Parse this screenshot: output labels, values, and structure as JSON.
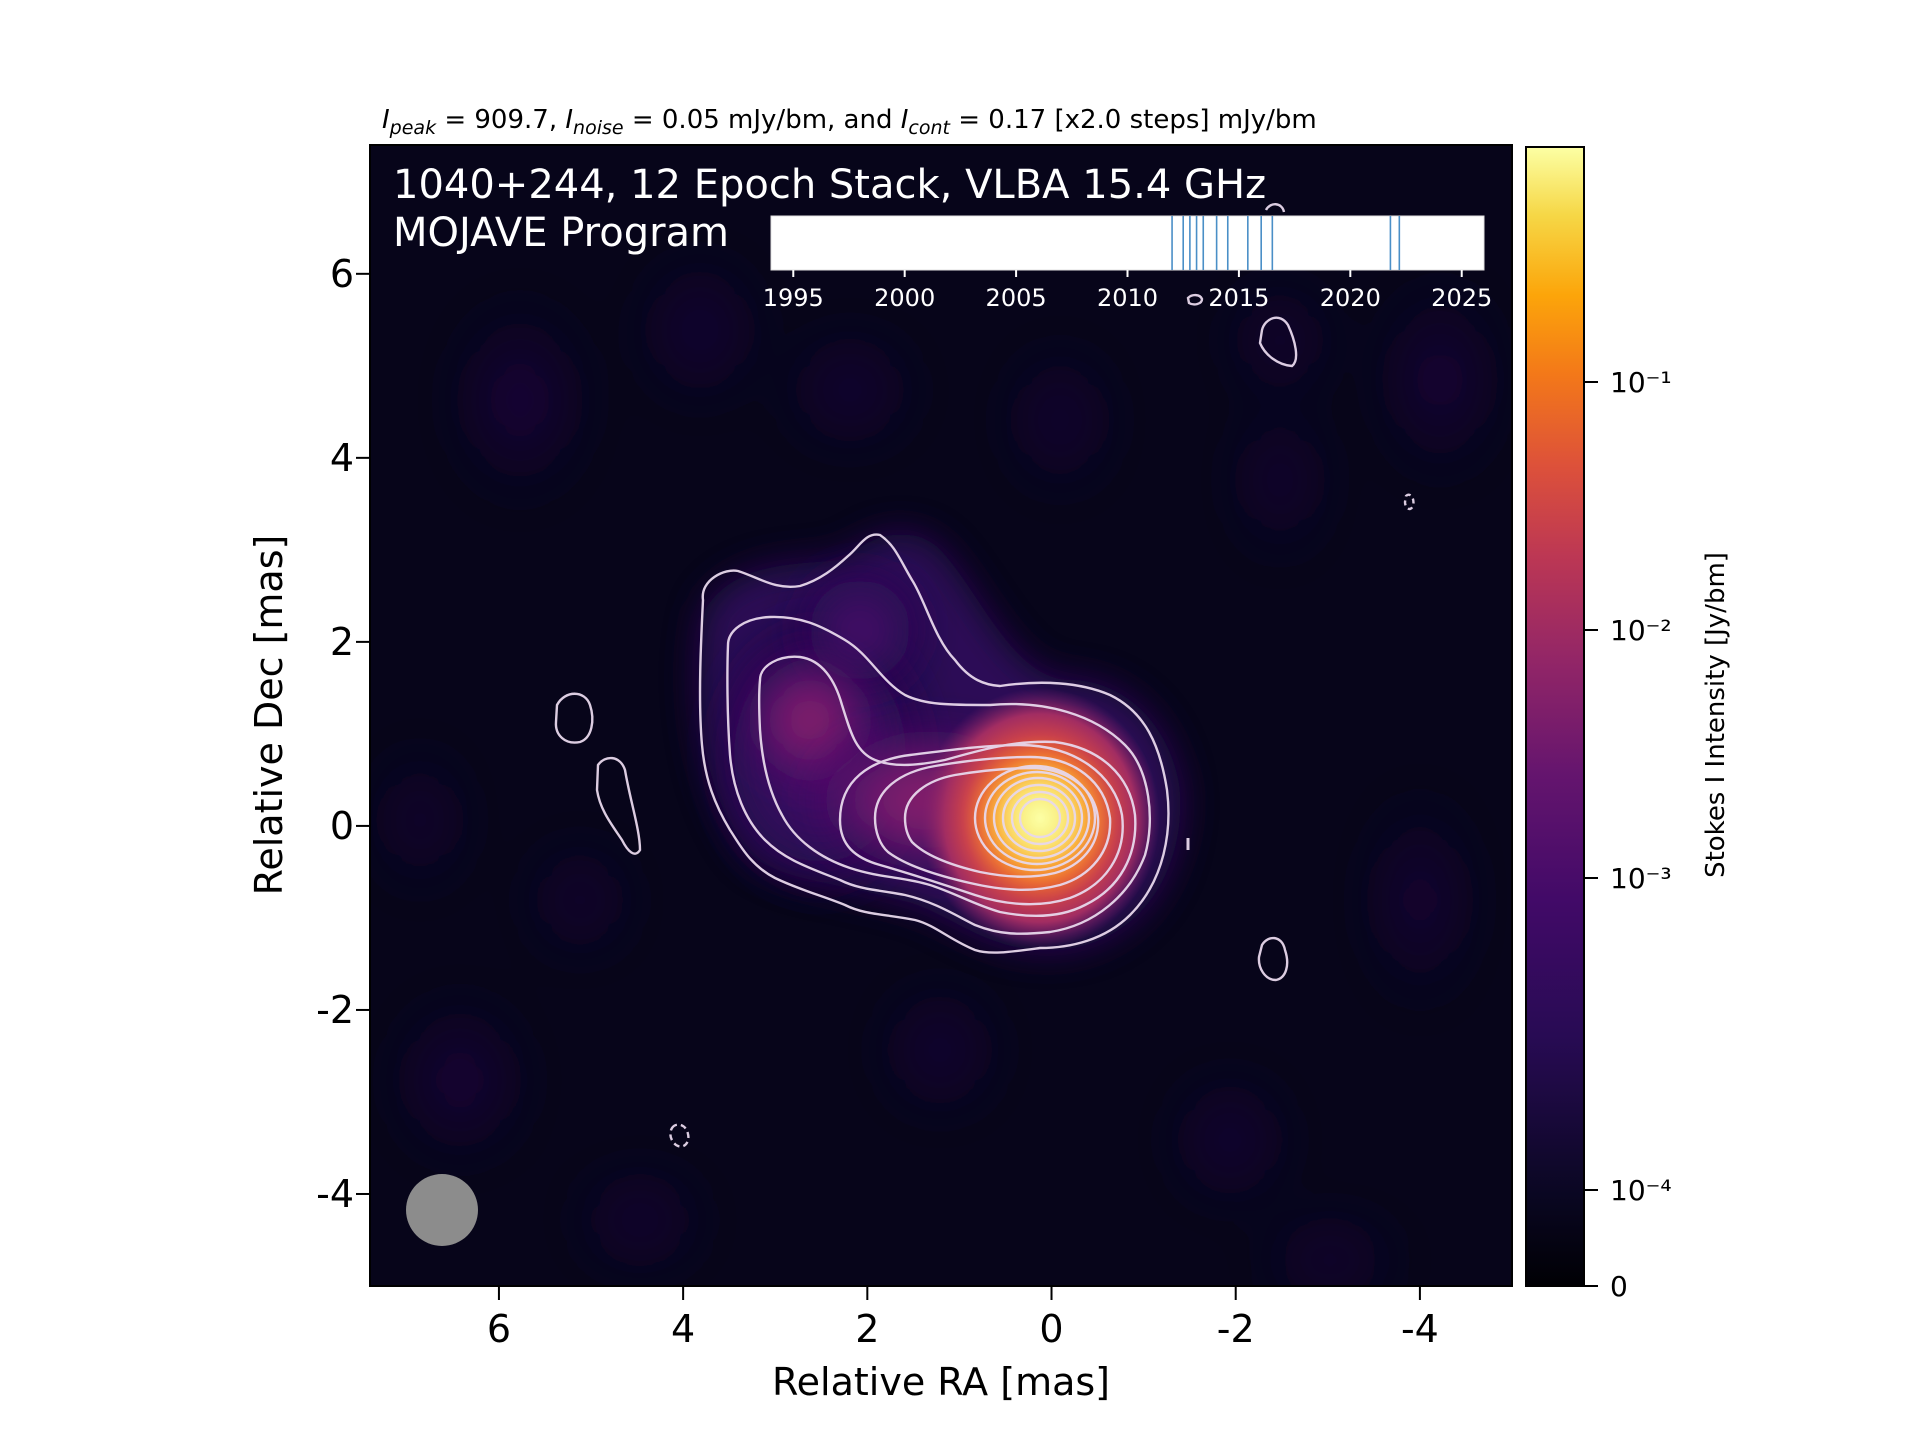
{
  "chart_data": {
    "type": "heatmap",
    "header": {
      "p1": "I",
      "s1": "peak",
      "p2": " = 909.7, ",
      "p3": "I",
      "s2": "noise",
      "p4": " = 0.05 mJy/bm, and ",
      "p5": "I",
      "s3": "cont",
      "p6": " = 0.17 [x2.0 steps] mJy/bm"
    },
    "overlay_title_line1": "1040+244, 12 Epoch Stack, VLBA 15.4 GHz",
    "overlay_title_line2": "MOJAVE Program",
    "xlabel": "Relative RA [mas]",
    "ylabel": "Relative Dec [mas]",
    "xlim": [
      7.4,
      -5.0
    ],
    "ylim": [
      -5.0,
      7.4
    ],
    "x_ticks": [
      6,
      4,
      2,
      0,
      -2,
      -4
    ],
    "y_ticks": [
      6,
      4,
      2,
      0,
      -2,
      -4
    ],
    "x_tick_labels": [
      "6",
      "4",
      "2",
      "0",
      "-2",
      "-4"
    ],
    "y_tick_labels": [
      "6",
      "4",
      "2",
      "0",
      "-2",
      "-4"
    ],
    "colorbar": {
      "label": "Stokes I Intensity [Jy/bm]",
      "colormap": "inferno",
      "ticks": [
        {
          "value": 0,
          "label": "0"
        },
        {
          "value": 0.0001,
          "label": "10⁻⁴"
        },
        {
          "value": 0.001,
          "label": "10⁻³"
        },
        {
          "value": 0.01,
          "label": "10⁻²"
        },
        {
          "value": 0.1,
          "label": "10⁻¹"
        }
      ]
    },
    "epoch_timeline": {
      "xlim": [
        1994,
        2026
      ],
      "tick_years": [
        1995,
        2000,
        2005,
        2010,
        2015,
        2020,
        2025
      ],
      "tick_labels": [
        "1995",
        "2000",
        "2005",
        "2010",
        "2015",
        "2020",
        "2025"
      ],
      "epochs": [
        2012.0,
        2012.5,
        2012.8,
        2013.1,
        2013.4,
        2014.0,
        2014.5,
        2015.4,
        2016.0,
        2016.5,
        2021.8,
        2022.2
      ],
      "line_color": "#4a8fc7"
    },
    "source": {
      "core": {
        "ra": 0.0,
        "dec": 0.0,
        "peak_jy": 0.9097
      },
      "jet_components": [
        {
          "ra": 1.5,
          "dec": 0.15,
          "jy": 0.006
        },
        {
          "ra": 2.8,
          "dec": 1.1,
          "jy": 0.0015
        },
        {
          "ra": 2.0,
          "dec": 2.3,
          "jy": 0.0004
        }
      ]
    },
    "beam": {
      "major_mas": 0.8,
      "minor_mas": 0.8,
      "pa_deg": 0,
      "color": "#8c8c8c"
    },
    "contours": {
      "base_mjy": 0.17,
      "step_factor": 2.0,
      "color": "#e8d8ec",
      "negative_style": "dashed"
    }
  }
}
